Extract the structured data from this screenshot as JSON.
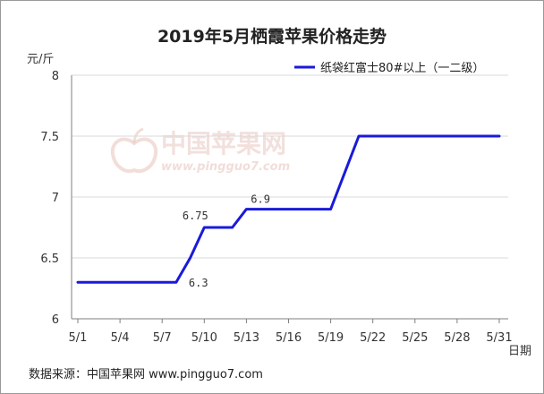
{
  "chart_data": {
    "type": "line",
    "title": "2019年5月栖霞苹果价格走势",
    "ylabel": "元/斤",
    "xlabel": "日期",
    "ylim": [
      6,
      8
    ],
    "yticks": [
      "6",
      "6.5",
      "7",
      "7.5",
      "8"
    ],
    "xlim": [
      1,
      31
    ],
    "xticks": [
      "5/1",
      "5/4",
      "5/7",
      "5/10",
      "5/13",
      "5/16",
      "5/19",
      "5/22",
      "5/25",
      "5/28",
      "5/31"
    ],
    "grid": "horizontal",
    "legend_position": "top-right",
    "series": [
      {
        "name": "纸袋红富士80#以上（一二级）",
        "color": "#1a1adb",
        "x": [
          1,
          2,
          3,
          4,
          5,
          6,
          7,
          8,
          9,
          10,
          11,
          12,
          13,
          14,
          15,
          16,
          17,
          18,
          19,
          20,
          21,
          22,
          23,
          24,
          25,
          26,
          27,
          28,
          29,
          30,
          31
        ],
        "y": [
          6.3,
          6.3,
          6.3,
          6.3,
          6.3,
          6.3,
          6.3,
          6.3,
          6.5,
          6.75,
          6.75,
          6.75,
          6.9,
          6.9,
          6.9,
          6.9,
          6.9,
          6.9,
          6.9,
          7.2,
          7.5,
          7.5,
          7.5,
          7.5,
          7.5,
          7.5,
          7.5,
          7.5,
          7.5,
          7.5,
          7.5
        ]
      }
    ],
    "annotations": [
      {
        "label": "6.3",
        "x": 8,
        "y": 6.3
      },
      {
        "label": "6.75",
        "x": 10,
        "y": 6.75
      },
      {
        "label": "6.9",
        "x": 14,
        "y": 6.9
      }
    ]
  },
  "watermark": {
    "text": "中国苹果网",
    "url": "www.pingguo7.com"
  },
  "source_text": "数据来源：中国苹果网 www.pingguo7.com"
}
